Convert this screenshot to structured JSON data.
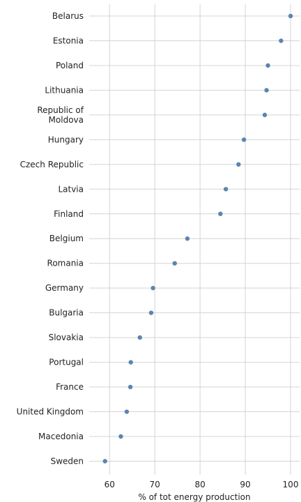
{
  "chart_data": {
    "type": "scatter",
    "orientation": "horizontal",
    "title": "",
    "xlabel": "% of tot energy production",
    "ylabel": "",
    "xlim": [
      55.5,
      102
    ],
    "xticks": [
      60,
      70,
      80,
      90,
      100
    ],
    "grid": true,
    "legend": "none",
    "point_color": "#5b84b1",
    "categories": [
      "Belarus",
      "Estonia",
      "Poland",
      "Lithuania",
      "Republic of\nMoldova",
      "Hungary",
      "Czech Republic",
      "Latvia",
      "Finland",
      "Belgium",
      "Romania",
      "Germany",
      "Bulgaria",
      "Slovakia",
      "Portugal",
      "France",
      "United Kingdom",
      "Macedonia",
      "Sweden"
    ],
    "values": [
      100.0,
      97.9,
      95.0,
      94.7,
      94.3,
      89.7,
      88.5,
      85.7,
      84.5,
      77.2,
      74.4,
      69.6,
      69.2,
      66.7,
      64.7,
      64.6,
      63.8,
      62.5,
      59.0
    ]
  }
}
